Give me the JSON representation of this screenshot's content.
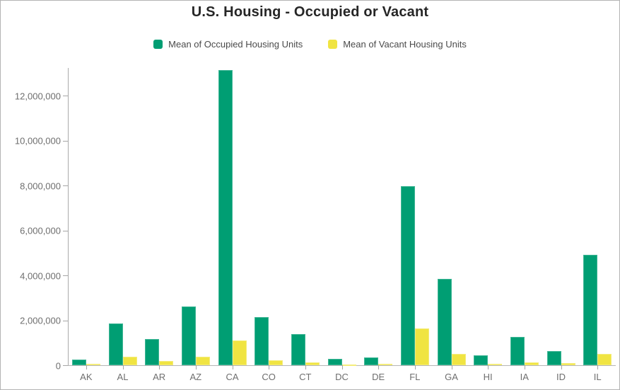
{
  "title": "U.S. Housing - Occupied or Vacant",
  "legend": {
    "items": [
      {
        "label": "Mean of Occupied Housing Units",
        "color": "#009e73"
      },
      {
        "label": "Mean of Vacant Housing Units",
        "color": "#f0e442"
      }
    ]
  },
  "chart_data": {
    "type": "bar",
    "title": "U.S. Housing - Occupied or Vacant",
    "categories": [
      "AK",
      "AL",
      "AR",
      "AZ",
      "CA",
      "CO",
      "CT",
      "DC",
      "DE",
      "FL",
      "GA",
      "HI",
      "IA",
      "ID",
      "IL"
    ],
    "series": [
      {
        "name": "Mean of Occupied Housing Units",
        "color": "#009e73",
        "values": [
          240000,
          1860000,
          1150000,
          2620000,
          13150000,
          2130000,
          1380000,
          280000,
          360000,
          7980000,
          3850000,
          450000,
          1260000,
          640000,
          4900000
        ]
      },
      {
        "name": "Mean of Vacant Housing Units",
        "color": "#f0e442",
        "values": [
          55000,
          370000,
          190000,
          390000,
          1100000,
          230000,
          120000,
          30000,
          60000,
          1630000,
          490000,
          75000,
          130000,
          95000,
          490000
        ]
      }
    ],
    "xlabel": "",
    "ylabel": "",
    "ylim": [
      0,
      13230000
    ],
    "yticks": [
      0,
      2000000,
      4000000,
      6000000,
      8000000,
      10000000,
      12000000
    ],
    "grid": false,
    "legend_position": "top"
  },
  "colors": {
    "occupied": "#009e73",
    "vacant": "#f0e442",
    "axis": "#ababab",
    "tick_label": "#6e6e6e",
    "title_text": "#262626",
    "legend_text": "#4a4a4a",
    "border": "#b3b3b3"
  }
}
